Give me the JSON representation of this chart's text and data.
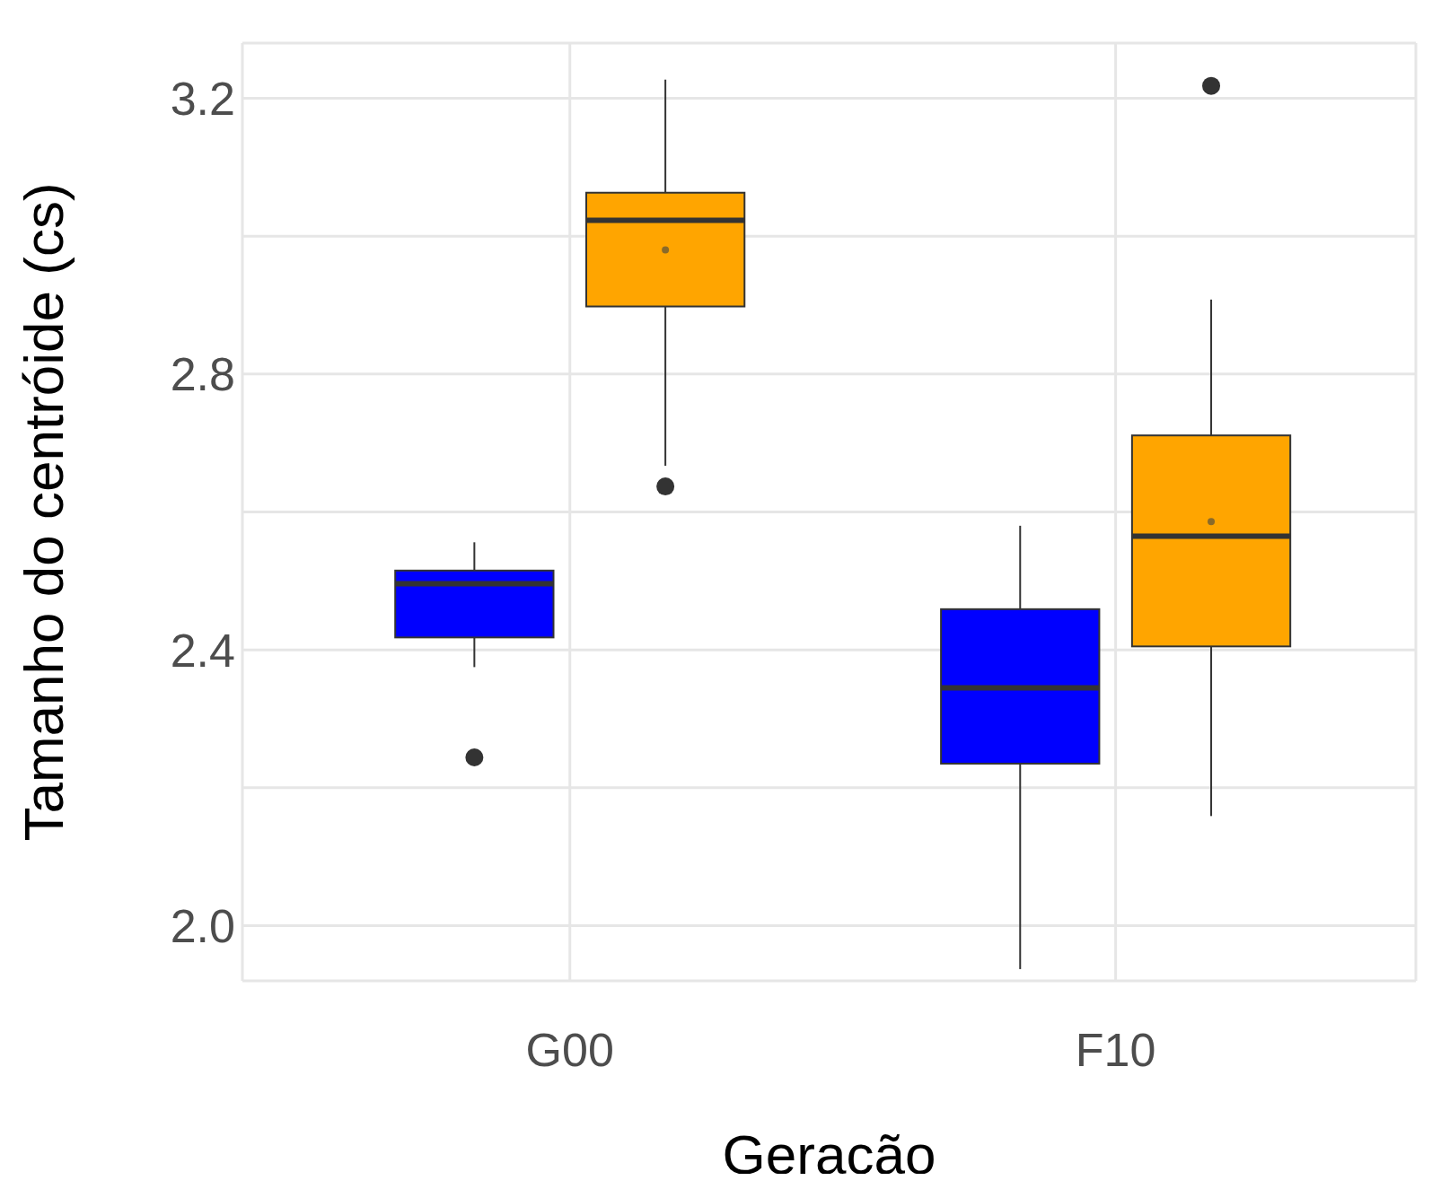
{
  "chart_data": {
    "type": "box",
    "xlabel": "Geracão",
    "ylabel": "Tamanho do centróide (cs)",
    "categories": [
      "G00",
      "F10"
    ],
    "series": [
      {
        "color": "#0000ff",
        "boxes": [
          {
            "low": 2.375,
            "q1": 2.418,
            "median": 2.496,
            "q3": 2.515,
            "high": 2.556,
            "outliers": [
              2.244
            ]
          },
          {
            "low": 1.937,
            "q1": 2.235,
            "median": 2.345,
            "q3": 2.459,
            "high": 2.58
          }
        ]
      },
      {
        "color": "#ffa500",
        "boxes": [
          {
            "low": 2.667,
            "q1": 2.898,
            "median": 3.023,
            "q3": 3.063,
            "high": 3.227,
            "mean": 2.98,
            "outliers": [
              2.637
            ]
          },
          {
            "low": 2.159,
            "q1": 2.405,
            "median": 2.565,
            "q3": 2.711,
            "high": 2.908,
            "mean": 2.586,
            "outliers": [
              3.218
            ]
          }
        ]
      }
    ],
    "ylim": [
      1.92,
      3.28
    ],
    "yticks": [
      {
        "value": 2,
        "label": "2.0"
      },
      {
        "value": 2.2,
        "label": null
      },
      2.4,
      {
        "value": 2.6,
        "label": null
      },
      2.8,
      {
        "value": 3.0,
        "label": null
      },
      3.2
    ],
    "grid": true
  }
}
